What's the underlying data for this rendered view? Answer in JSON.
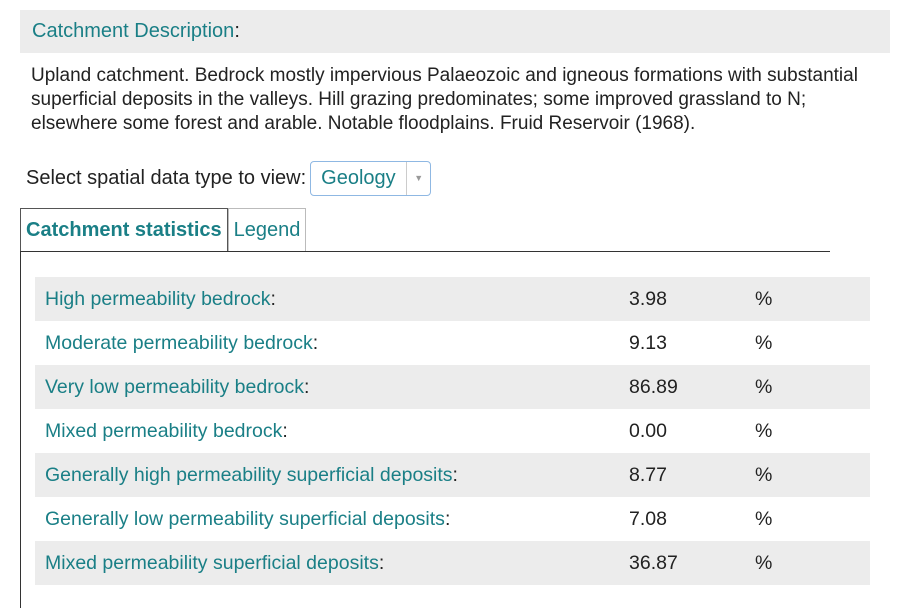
{
  "description": {
    "label": "Catchment Description",
    "text": "Upland catchment. Bedrock mostly impervious Palaeozoic and igneous formations with substantial superficial deposits in the valleys. Hill grazing predominates; some improved grassland to N; elsewhere some forest and arable. Notable floodplains. Fruid Reservoir (1968)."
  },
  "select": {
    "label": "Select spatial data type to view:",
    "value": "Geology"
  },
  "tabs": [
    {
      "label": "Catchment statistics",
      "active": true
    },
    {
      "label": "Legend",
      "active": false
    }
  ],
  "stats": [
    {
      "name": "High permeability bedrock",
      "value": "3.98",
      "unit": "%"
    },
    {
      "name": "Moderate permeability bedrock",
      "value": "9.13",
      "unit": "%"
    },
    {
      "name": "Very low permeability bedrock",
      "value": "86.89",
      "unit": "%"
    },
    {
      "name": "Mixed permeability bedrock",
      "value": "0.00",
      "unit": "%"
    },
    {
      "name": "Generally high permeability superficial deposits",
      "value": "8.77",
      "unit": "%"
    },
    {
      "name": "Generally low permeability superficial deposits",
      "value": "7.08",
      "unit": "%"
    },
    {
      "name": "Mixed permeability superficial deposits",
      "value": "36.87",
      "unit": "%"
    }
  ]
}
